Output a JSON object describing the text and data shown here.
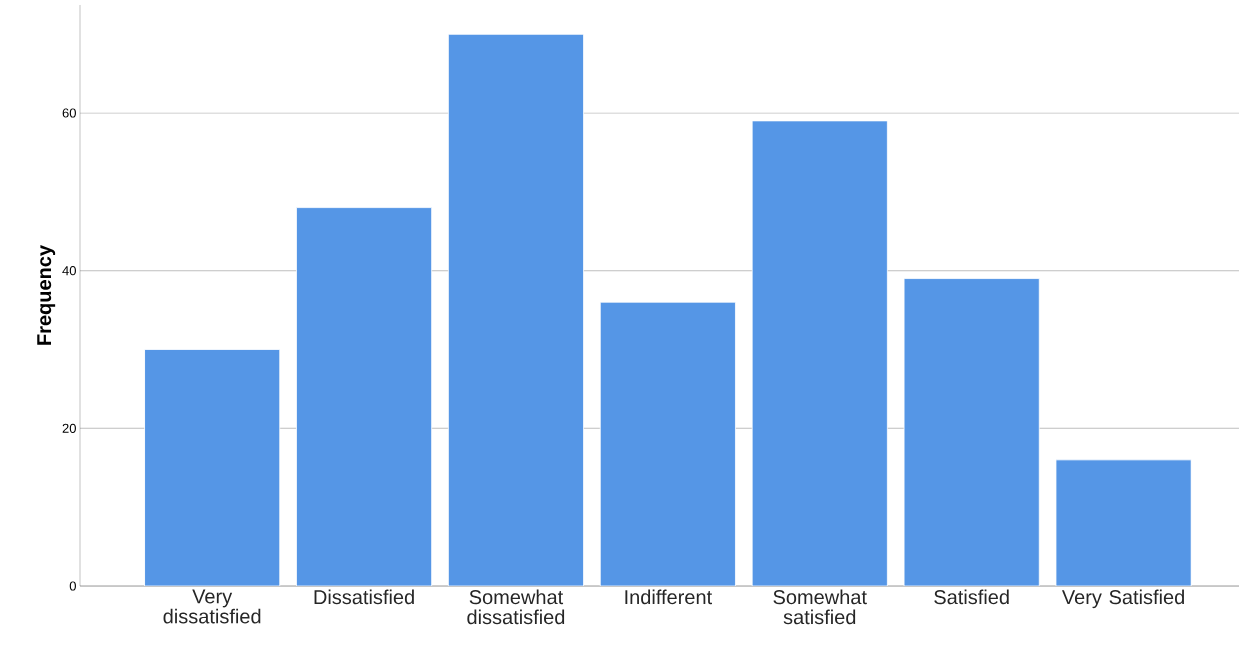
{
  "chart_data": {
    "type": "bar",
    "ylabel": "Frequency",
    "categories": [
      "Very dissatisfied",
      "Dissatisfied",
      "Somewhat dissatisfied",
      "Indifferent",
      "Somewhat satisfied",
      "Satisfied",
      "Very Satisfied"
    ],
    "values": [
      30,
      48,
      70,
      36,
      59,
      39,
      16
    ],
    "color": "#5596e6",
    "ylim": [
      0,
      73.7
    ],
    "yticks": [
      0,
      20,
      40,
      60
    ],
    "grid": "y"
  }
}
